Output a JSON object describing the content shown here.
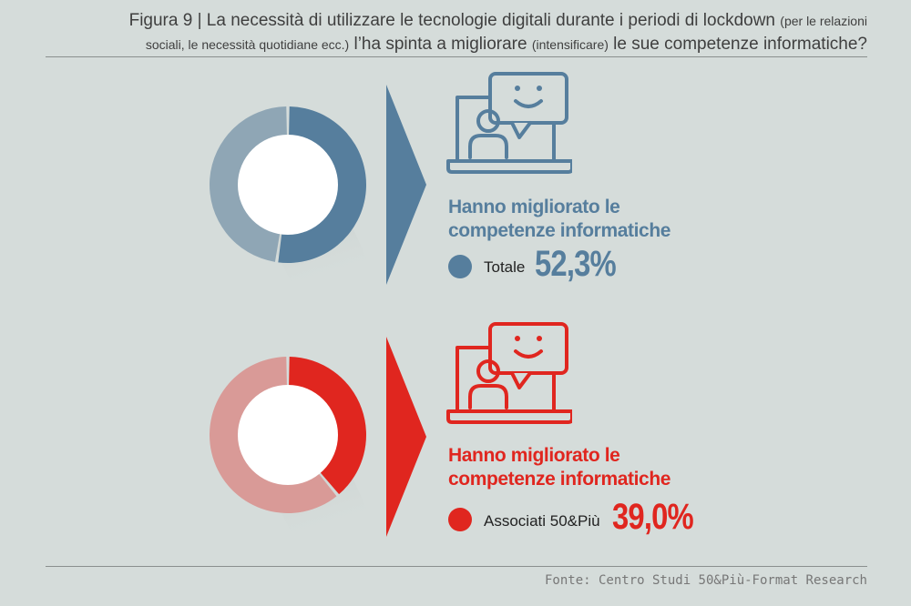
{
  "title": {
    "part1": "Figura 9 | La necessità di utilizzare le tecnologie digitali durante i periodi di lockdown",
    "part2": "(per le relazioni",
    "part3": "sociali, le necessità quotidiane ecc.)",
    "part4": "l’ha spinta a migliorare",
    "part5": "(intensificare)",
    "part6": "le sue competenze informatiche?"
  },
  "source": "Fonte: Centro Studi 50&Più-Format Research",
  "colors": {
    "background": "#d5dcda",
    "blue": "#567e9d",
    "blue_light": "#8fa6b5",
    "red": "#e0261f",
    "red_light": "#d99a97"
  },
  "icons": [
    "laptop-video-call-icon",
    "smiley-speech-bubble-icon",
    "arrow-triangle-icon"
  ],
  "chart_data": [
    {
      "type": "pie",
      "style": "donut",
      "heading": "Hanno migliorato le competenze informatiche",
      "label": "Totale",
      "value": 52.3,
      "value_text": "52,3%",
      "color": "#567e9d",
      "rest_color": "#8fa6b5"
    },
    {
      "type": "pie",
      "style": "donut",
      "heading": "Hanno migliorato le competenze informatiche",
      "label": "Associati 50&Più",
      "value": 39.0,
      "value_text": "39,0%",
      "color": "#e0261f",
      "rest_color": "#d99a97"
    }
  ]
}
